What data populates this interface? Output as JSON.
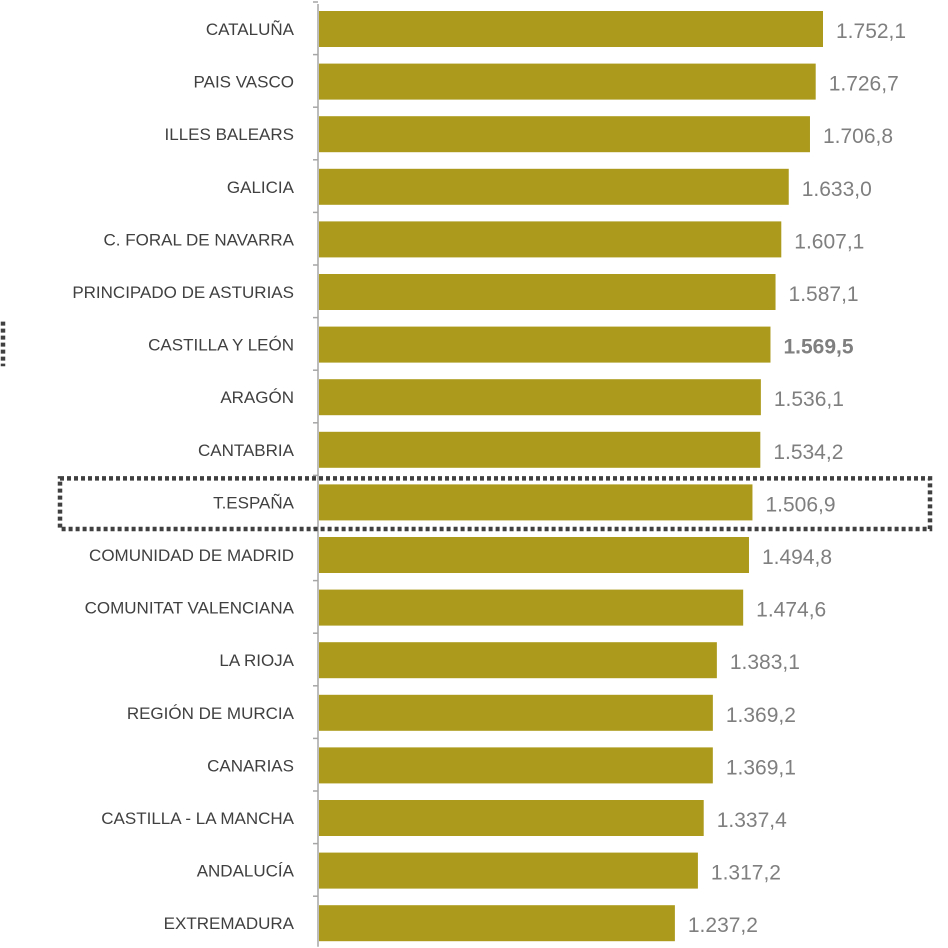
{
  "chart_data": {
    "type": "bar",
    "orientation": "horizontal",
    "categories": [
      "CATALUÑA",
      "PAIS VASCO",
      "ILLES BALEARS",
      "GALICIA",
      "C. FORAL DE NAVARRA",
      "PRINCIPADO DE ASTURIAS",
      "CASTILLA Y LEÓN",
      "ARAGÓN",
      "CANTABRIA",
      "T.ESPAÑA",
      "COMUNIDAD DE MADRID",
      "COMUNITAT VALENCIANA",
      "LA RIOJA",
      "REGIÓN DE MURCIA",
      "CANARIAS",
      "CASTILLA - LA MANCHA",
      "ANDALUCÍA",
      "EXTREMADURA"
    ],
    "values": [
      1752.1,
      1726.7,
      1706.8,
      1633.0,
      1607.1,
      1587.1,
      1569.5,
      1536.1,
      1534.2,
      1506.9,
      1494.8,
      1474.6,
      1383.1,
      1369.2,
      1369.1,
      1337.4,
      1317.2,
      1237.2
    ],
    "value_labels": [
      "1.752,1",
      "1.726,7",
      "1.706,8",
      "1.633,0",
      "1.607,1",
      "1.587,1",
      "1.569,5",
      "1.536,1",
      "1.534,2",
      "1.506,9",
      "1.494,8",
      "1.474,6",
      "1.383,1",
      "1.369,2",
      "1.369,1",
      "1.337,4",
      "1.317,2",
      "1.237,2"
    ],
    "highlighted_category": "T.ESPAÑA",
    "bold_value_category": "CASTILLA Y LEÓN",
    "title": "",
    "xlabel": "",
    "ylabel": "",
    "xlim": [
      0,
      1752.1
    ],
    "grid": false,
    "legend": "none",
    "colors": {
      "bar": "#ab9a1b",
      "value_text": "#7f7f7f",
      "category_text": "#404040",
      "axis": "#a6a6a6",
      "highlight_box": "#404040"
    }
  }
}
